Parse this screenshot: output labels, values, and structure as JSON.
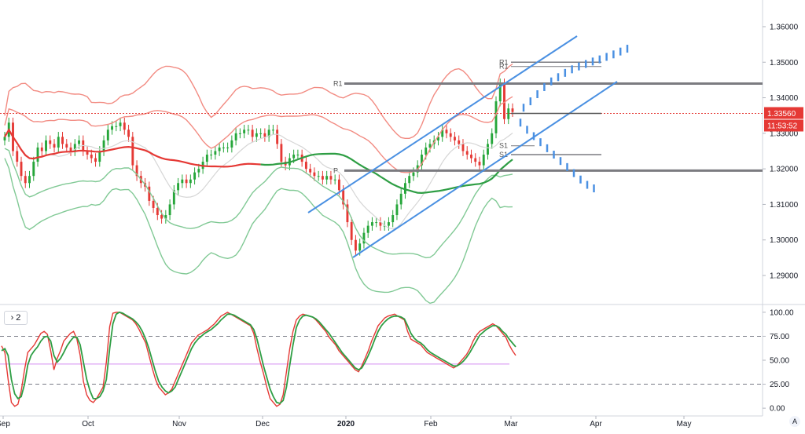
{
  "chart_data": [
    {
      "type": "candlestick",
      "pane": "price",
      "y_axis_ticks": [
        "1.36000",
        "1.35000",
        "1.34000",
        "1.33000",
        "1.32000",
        "1.31000",
        "1.30000",
        "1.29000"
      ],
      "ylim": [
        1.2825,
        1.3675
      ],
      "x_axis_ticks": [
        "Sep",
        "Oct",
        "Nov",
        "Dec",
        "2020",
        "Feb",
        "Mar",
        "Apr",
        "May"
      ],
      "last_price": "1.33560",
      "countdown": "11:53:52",
      "candles_close": [
        1.329,
        1.333,
        1.325,
        1.322,
        1.318,
        1.316,
        1.318,
        1.322,
        1.326,
        1.325,
        1.328,
        1.327,
        1.326,
        1.329,
        1.327,
        1.326,
        1.325,
        1.327,
        1.328,
        1.325,
        1.324,
        1.323,
        1.322,
        1.325,
        1.328,
        1.331,
        1.332,
        1.332,
        1.333,
        1.331,
        1.329,
        1.321,
        1.318,
        1.316,
        1.315,
        1.311,
        1.309,
        1.307,
        1.306,
        1.307,
        1.31,
        1.314,
        1.316,
        1.317,
        1.316,
        1.317,
        1.319,
        1.32,
        1.322,
        1.324,
        1.324,
        1.325,
        1.326,
        1.326,
        1.326,
        1.328,
        1.33,
        1.33,
        1.331,
        1.331,
        1.329,
        1.33,
        1.33,
        1.329,
        1.331,
        1.331,
        1.327,
        1.322,
        1.321,
        1.323,
        1.324,
        1.324,
        1.322,
        1.32,
        1.319,
        1.318,
        1.318,
        1.317,
        1.318,
        1.317,
        1.317,
        1.314,
        1.31,
        1.305,
        1.3,
        1.297,
        1.299,
        1.302,
        1.304,
        1.305,
        1.305,
        1.304,
        1.304,
        1.305,
        1.307,
        1.31,
        1.313,
        1.316,
        1.318,
        1.319,
        1.321,
        1.324,
        1.326,
        1.327,
        1.328,
        1.329,
        1.331,
        1.33,
        1.329,
        1.328,
        1.327,
        1.325,
        1.324,
        1.323,
        1.322,
        1.321,
        1.324,
        1.327,
        1.33,
        1.339,
        1.344,
        1.334,
        1.337,
        1.336
      ],
      "overlays": [
        "Bollinger Bands (red)",
        "Bollinger Bands (green)",
        "Moving average red",
        "Moving average green",
        "Moving average grey"
      ],
      "pivots": [
        {
          "label": "R1",
          "value": 1.344
        },
        {
          "label": "P",
          "value": 1.3195
        },
        {
          "label": "R1",
          "value": 1.35
        },
        {
          "label": "R1",
          "value": 1.3488
        },
        {
          "label": "S1",
          "value": 1.3265
        },
        {
          "label": "S1",
          "value": 1.324
        }
      ],
      "projection_up": [
        1.3372,
        1.339,
        1.341,
        1.343,
        1.3446,
        1.3458,
        1.347,
        1.348,
        1.3488,
        1.3495,
        1.3502,
        1.3508,
        1.3515,
        1.3522,
        1.353,
        1.3538
      ],
      "projection_down": [
        1.333,
        1.331,
        1.3292,
        1.3275,
        1.3258,
        1.324,
        1.3222,
        1.3205,
        1.3188,
        1.317,
        1.3155,
        1.3145
      ],
      "colors": {
        "up": "#26a63a",
        "down": "#e53935",
        "channel": "#4a90e2",
        "pivot": "#7b7b80",
        "last_price": "#e53935",
        "projection": "#4a90e2"
      }
    },
    {
      "type": "line",
      "pane": "stochastic",
      "pane_label": "2",
      "y_axis_ticks": [
        "100.00",
        "75.00",
        "50.00",
        "25.00",
        "0.00"
      ],
      "ylim": [
        -4,
        104
      ],
      "levels": [
        75,
        25
      ],
      "mid_line": 46,
      "series": [
        {
          "values": [
            65,
            58,
            30,
            6,
            2,
            4,
            18,
            40,
            58,
            62,
            66,
            72,
            78,
            80,
            77,
            60,
            40,
            52,
            60,
            70,
            74,
            78,
            80,
            72,
            55,
            28,
            14,
            8,
            6,
            10,
            16,
            22,
            48,
            85,
            99,
            100,
            100,
            98,
            96,
            94,
            92,
            88,
            82,
            75,
            68,
            55,
            42,
            30,
            22,
            18,
            14,
            16,
            20,
            28,
            36,
            44,
            52,
            60,
            68,
            72,
            76,
            78,
            80,
            82,
            85,
            88,
            92,
            96,
            98,
            100,
            98,
            96,
            94,
            92,
            90,
            88,
            86,
            78,
            62,
            48,
            36,
            22,
            10,
            6,
            2,
            4,
            14,
            38,
            62,
            80,
            92,
            96,
            98,
            97,
            96,
            95,
            92,
            88,
            84,
            80,
            74,
            70,
            66,
            60,
            56,
            52,
            48,
            44,
            40,
            38,
            44,
            52,
            60,
            70,
            78,
            86,
            90,
            94,
            96,
            97,
            98,
            96,
            94,
            92,
            80,
            72,
            70,
            68,
            66,
            62,
            58,
            56,
            54,
            52,
            50,
            48,
            46,
            44,
            42,
            44,
            48,
            52,
            56,
            62,
            70,
            76,
            80,
            82,
            84,
            86,
            88,
            86,
            82,
            78,
            74,
            66,
            60,
            55
          ]
        },
        {
          "values": [
            60,
            62,
            55,
            30,
            15,
            10,
            12,
            25,
            45,
            55,
            60,
            64,
            70,
            74,
            75,
            70,
            55,
            48,
            52,
            58,
            65,
            70,
            74,
            74,
            66,
            48,
            30,
            18,
            10,
            10,
            12,
            18,
            30,
            62,
            88,
            98,
            100,
            99,
            97,
            95,
            93,
            90,
            86,
            80,
            72,
            62,
            50,
            38,
            28,
            22,
            18,
            16,
            18,
            22,
            30,
            38,
            46,
            54,
            62,
            68,
            72,
            75,
            78,
            80,
            82,
            85,
            88,
            92,
            95,
            98,
            98,
            97,
            95,
            93,
            91,
            89,
            87,
            82,
            72,
            58,
            44,
            32,
            20,
            12,
            6,
            5,
            8,
            22,
            45,
            66,
            84,
            92,
            96,
            97,
            96,
            95,
            93,
            90,
            86,
            82,
            78,
            73,
            68,
            63,
            58,
            54,
            50,
            46,
            42,
            40,
            42,
            48,
            55,
            63,
            72,
            80,
            86,
            90,
            93,
            95,
            96,
            96,
            95,
            93,
            86,
            78,
            73,
            70,
            68,
            65,
            61,
            58,
            56,
            54,
            52,
            50,
            48,
            46,
            44,
            44,
            46,
            49,
            53,
            58,
            64,
            70,
            76,
            79,
            82,
            84,
            86,
            86,
            84,
            80,
            77,
            72,
            68,
            64
          ]
        }
      ]
    }
  ],
  "ui": {
    "pane_toggle_label": "2",
    "pane_toggle_icon": "chevron-right-icon",
    "auto_scale_label": "A"
  }
}
